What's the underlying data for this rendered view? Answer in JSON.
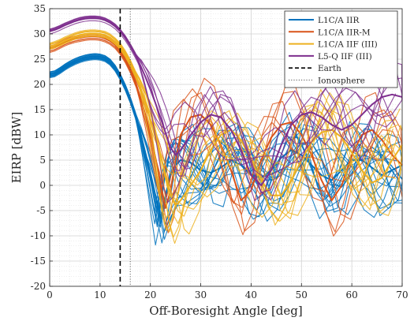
{
  "chart_data": {
    "type": "line",
    "xlabel": "Off-Boresight Angle [deg]",
    "ylabel": "EIRP [dBW]",
    "xlim": [
      0,
      70
    ],
    "ylim": [
      -20,
      35
    ],
    "x_ticks": [
      0,
      10,
      20,
      30,
      40,
      50,
      60,
      70
    ],
    "y_ticks": [
      -20,
      -15,
      -10,
      -5,
      0,
      5,
      10,
      15,
      20,
      25,
      30,
      35
    ],
    "grid": "on",
    "minor_grid": "on",
    "legend_position": "top-right",
    "vertical_lines": [
      {
        "name": "Earth",
        "x": 14,
        "style": "dashed",
        "color": "#000000"
      },
      {
        "name": "Ionosphere",
        "x": 16,
        "style": "dotted",
        "color": "#555555"
      }
    ],
    "series": [
      {
        "name": "L1C/A IIR",
        "color": "#0072BD",
        "curve_count": 18,
        "x": [
          0,
          1,
          2,
          3,
          4,
          5,
          6,
          7,
          8,
          9,
          10,
          11,
          12,
          13,
          14,
          15,
          16,
          17,
          18,
          19,
          20,
          21,
          22,
          23,
          24,
          25,
          26,
          28,
          30,
          32,
          34,
          36,
          38,
          40,
          42,
          44,
          46,
          48,
          50,
          52,
          54,
          56,
          58,
          60,
          62,
          64,
          66,
          68,
          70
        ],
        "y": [
          22.0,
          22.2,
          22.8,
          23.5,
          24.1,
          24.6,
          25.0,
          25.3,
          25.5,
          25.6,
          25.5,
          25.2,
          24.5,
          23.3,
          21.6,
          19.5,
          17.0,
          14.0,
          10.5,
          6.5,
          2.5,
          -2.0,
          -6.5,
          -2.0,
          2.0,
          4.0,
          5.0,
          4.5,
          3.0,
          2.5,
          3.5,
          5.0,
          4.0,
          2.0,
          1.5,
          3.0,
          5.5,
          7.0,
          6.0,
          4.0,
          2.0,
          1.0,
          3.0,
          5.0,
          5.0,
          3.5,
          2.0,
          3.0,
          4.0
        ]
      },
      {
        "name": "L1C/A IIR-M",
        "color": "#D95319",
        "curve_count": 7,
        "x": [
          0,
          1,
          2,
          3,
          4,
          5,
          6,
          7,
          8,
          9,
          10,
          11,
          12,
          13,
          14,
          15,
          16,
          17,
          18,
          19,
          20,
          21,
          22,
          23,
          24,
          25,
          26,
          28,
          30,
          32,
          34,
          36,
          38,
          40,
          42,
          44,
          46,
          48,
          50,
          52,
          54,
          56,
          58,
          60,
          62,
          64,
          66,
          68,
          70
        ],
        "y": [
          27.0,
          27.3,
          27.8,
          28.3,
          28.7,
          29.0,
          29.2,
          29.4,
          29.5,
          29.5,
          29.4,
          29.1,
          28.6,
          27.8,
          26.6,
          25.0,
          23.0,
          20.5,
          17.5,
          14.0,
          10.0,
          5.5,
          0.5,
          -4.5,
          -1.0,
          5.0,
          10.0,
          13.5,
          14.0,
          12.0,
          8.0,
          3.0,
          -3.0,
          -1.0,
          5.0,
          9.5,
          12.0,
          12.5,
          10.0,
          6.0,
          1.0,
          -3.0,
          0.0,
          6.0,
          10.0,
          11.0,
          9.0,
          6.0,
          4.0
        ]
      },
      {
        "name": "L1C/A IIF (III)",
        "color": "#EDB120",
        "curve_count": 12,
        "x": [
          0,
          1,
          2,
          3,
          4,
          5,
          6,
          7,
          8,
          9,
          10,
          11,
          12,
          13,
          14,
          15,
          16,
          17,
          18,
          19,
          20,
          21,
          22,
          23,
          24,
          25,
          26,
          28,
          30,
          32,
          34,
          36,
          38,
          40,
          42,
          44,
          46,
          48,
          50,
          52,
          54,
          56,
          58,
          60,
          62,
          64,
          66,
          68,
          70
        ],
        "y": [
          27.5,
          27.8,
          28.2,
          28.7,
          29.1,
          29.5,
          29.8,
          30.0,
          30.1,
          30.1,
          30.0,
          29.8,
          29.3,
          28.5,
          27.5,
          26.0,
          24.2,
          22.0,
          19.5,
          16.5,
          13.0,
          9.5,
          6.0,
          2.0,
          -2.0,
          -4.0,
          -3.0,
          0.0,
          3.0,
          7.0,
          10.0,
          11.0,
          9.0,
          5.0,
          1.0,
          -2.0,
          -2.0,
          1.0,
          5.0,
          8.5,
          10.5,
          11.0,
          9.5,
          6.5,
          3.0,
          0.5,
          1.5,
          5.0,
          8.0
        ]
      },
      {
        "name": "L5-Q IIF (III)",
        "color": "#7E2F8E",
        "curve_count": 8,
        "x": [
          0,
          1,
          2,
          3,
          4,
          5,
          6,
          7,
          8,
          9,
          10,
          11,
          12,
          13,
          14,
          15,
          16,
          17,
          18,
          19,
          20,
          21,
          22,
          23,
          24,
          25,
          26,
          28,
          30,
          32,
          34,
          36,
          38,
          40,
          42,
          44,
          46,
          48,
          50,
          52,
          54,
          56,
          58,
          60,
          62,
          64,
          66,
          68,
          70
        ],
        "y": [
          30.5,
          30.8,
          31.2,
          31.7,
          32.1,
          32.5,
          32.8,
          33.0,
          33.1,
          33.1,
          33.0,
          32.7,
          32.2,
          31.5,
          30.5,
          29.2,
          27.6,
          25.8,
          23.8,
          21.5,
          19.0,
          16.3,
          13.4,
          10.4,
          7.5,
          6.0,
          7.0,
          10.0,
          12.5,
          14.0,
          13.5,
          11.0,
          7.0,
          2.0,
          0.0,
          3.0,
          8.0,
          12.0,
          14.0,
          14.5,
          13.5,
          12.0,
          11.0,
          12.0,
          14.0,
          16.0,
          17.5,
          18.0,
          17.5
        ]
      }
    ]
  }
}
